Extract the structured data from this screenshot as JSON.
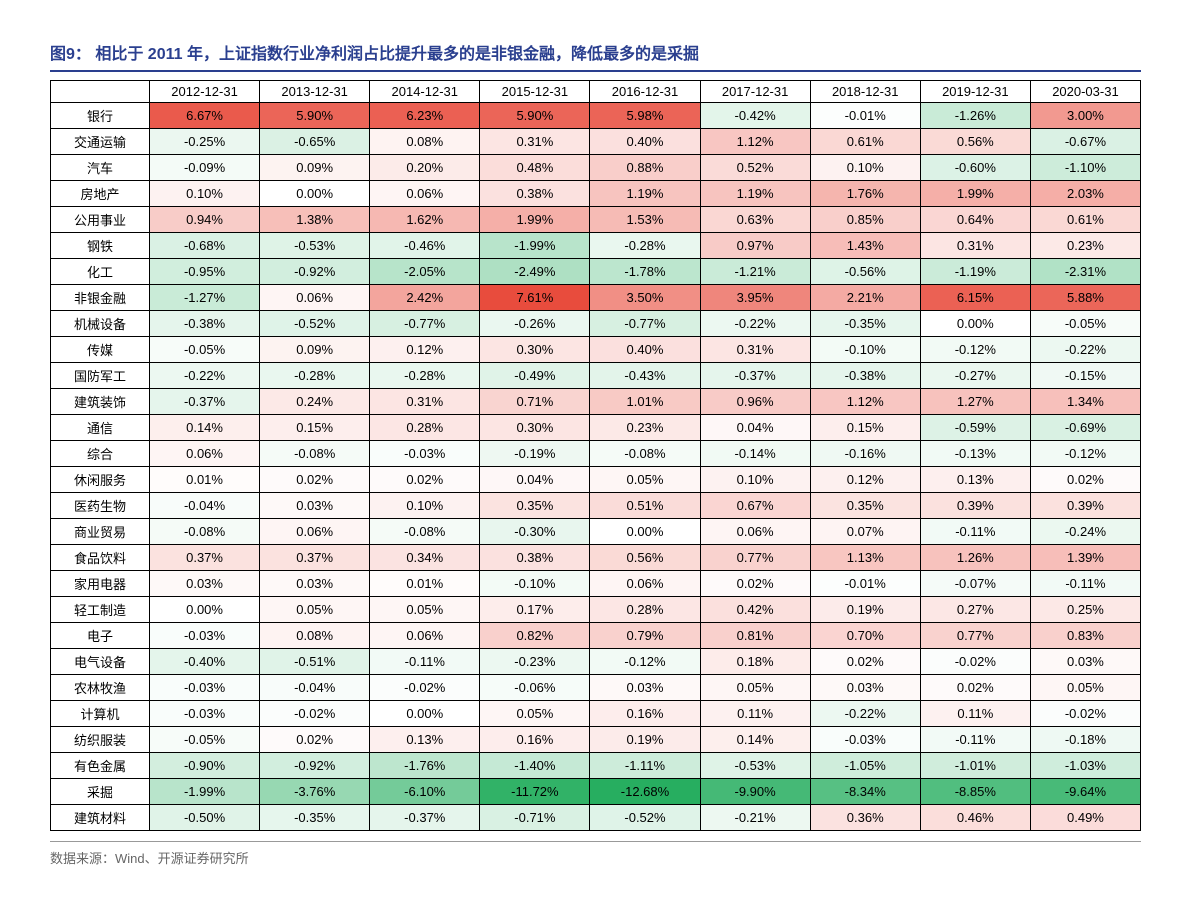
{
  "title_label": "图9：",
  "title_text": "相比于 2011 年，上证指数行业净利润占比提升最多的是非银金融，降低最多的是采掘",
  "source": "数据来源：Wind、开源证券研究所",
  "heatmap": {
    "pos_color": "#e84c3d",
    "neg_color": "#27ae60",
    "neutral_color": "#ffffff",
    "pos_max": 7.61,
    "neg_min": -12.68
  },
  "columns": [
    "",
    "2012-12-31",
    "2013-12-31",
    "2014-12-31",
    "2015-12-31",
    "2016-12-31",
    "2017-12-31",
    "2018-12-31",
    "2019-12-31",
    "2020-03-31"
  ],
  "rows": [
    {
      "label": "银行",
      "vals": [
        6.67,
        5.9,
        6.23,
        5.9,
        5.98,
        -0.42,
        -0.01,
        -1.26,
        3.0
      ]
    },
    {
      "label": "交通运输",
      "vals": [
        -0.25,
        -0.65,
        0.08,
        0.31,
        0.4,
        1.12,
        0.61,
        0.56,
        -0.67
      ]
    },
    {
      "label": "汽车",
      "vals": [
        -0.09,
        0.09,
        0.2,
        0.48,
        0.88,
        0.52,
        0.1,
        -0.6,
        -1.1
      ]
    },
    {
      "label": "房地产",
      "vals": [
        0.1,
        0.0,
        0.06,
        0.38,
        1.19,
        1.19,
        1.76,
        1.99,
        2.03
      ]
    },
    {
      "label": "公用事业",
      "vals": [
        0.94,
        1.38,
        1.62,
        1.99,
        1.53,
        0.63,
        0.85,
        0.64,
        0.61
      ]
    },
    {
      "label": "钢铁",
      "vals": [
        -0.68,
        -0.53,
        -0.46,
        -1.99,
        -0.28,
        0.97,
        1.43,
        0.31,
        0.23
      ]
    },
    {
      "label": "化工",
      "vals": [
        -0.95,
        -0.92,
        -2.05,
        -2.49,
        -1.78,
        -1.21,
        -0.56,
        -1.19,
        -2.31
      ]
    },
    {
      "label": "非银金融",
      "vals": [
        -1.27,
        0.06,
        2.42,
        7.61,
        3.5,
        3.95,
        2.21,
        6.15,
        5.88
      ]
    },
    {
      "label": "机械设备",
      "vals": [
        -0.38,
        -0.52,
        -0.77,
        -0.26,
        -0.77,
        -0.22,
        -0.35,
        0.0,
        -0.05
      ]
    },
    {
      "label": "传媒",
      "vals": [
        -0.05,
        0.09,
        0.12,
        0.3,
        0.4,
        0.31,
        -0.1,
        -0.12,
        -0.22
      ]
    },
    {
      "label": "国防军工",
      "vals": [
        -0.22,
        -0.28,
        -0.28,
        -0.49,
        -0.43,
        -0.37,
        -0.38,
        -0.27,
        -0.15
      ]
    },
    {
      "label": "建筑装饰",
      "vals": [
        -0.37,
        0.24,
        0.31,
        0.71,
        1.01,
        0.96,
        1.12,
        1.27,
        1.34
      ]
    },
    {
      "label": "通信",
      "vals": [
        0.14,
        0.15,
        0.28,
        0.3,
        0.23,
        0.04,
        0.15,
        -0.59,
        -0.69
      ]
    },
    {
      "label": "综合",
      "vals": [
        0.06,
        -0.08,
        -0.03,
        -0.19,
        -0.08,
        -0.14,
        -0.16,
        -0.13,
        -0.12
      ]
    },
    {
      "label": "休闲服务",
      "vals": [
        0.01,
        0.02,
        0.02,
        0.04,
        0.05,
        0.1,
        0.12,
        0.13,
        0.02
      ]
    },
    {
      "label": "医药生物",
      "vals": [
        -0.04,
        0.03,
        0.1,
        0.35,
        0.51,
        0.67,
        0.35,
        0.39,
        0.39
      ]
    },
    {
      "label": "商业贸易",
      "vals": [
        -0.08,
        0.06,
        -0.08,
        -0.3,
        0.0,
        0.06,
        0.07,
        -0.11,
        -0.24
      ]
    },
    {
      "label": "食品饮料",
      "vals": [
        0.37,
        0.37,
        0.34,
        0.38,
        0.56,
        0.77,
        1.13,
        1.26,
        1.39
      ]
    },
    {
      "label": "家用电器",
      "vals": [
        0.03,
        0.03,
        0.01,
        -0.1,
        0.06,
        0.02,
        -0.01,
        -0.07,
        -0.11
      ]
    },
    {
      "label": "轻工制造",
      "vals": [
        0.0,
        0.05,
        0.05,
        0.17,
        0.28,
        0.42,
        0.19,
        0.27,
        0.25
      ]
    },
    {
      "label": "电子",
      "vals": [
        -0.03,
        0.08,
        0.06,
        0.82,
        0.79,
        0.81,
        0.7,
        0.77,
        0.83
      ]
    },
    {
      "label": "电气设备",
      "vals": [
        -0.4,
        -0.51,
        -0.11,
        -0.23,
        -0.12,
        0.18,
        0.02,
        -0.02,
        0.03
      ]
    },
    {
      "label": "农林牧渔",
      "vals": [
        -0.03,
        -0.04,
        -0.02,
        -0.06,
        0.03,
        0.05,
        0.03,
        0.02,
        0.05
      ]
    },
    {
      "label": "计算机",
      "vals": [
        -0.03,
        -0.02,
        0.0,
        0.05,
        0.16,
        0.11,
        -0.22,
        0.11,
        -0.02
      ]
    },
    {
      "label": "纺织服装",
      "vals": [
        -0.05,
        0.02,
        0.13,
        0.16,
        0.19,
        0.14,
        -0.03,
        -0.11,
        -0.18
      ]
    },
    {
      "label": "有色金属",
      "vals": [
        -0.9,
        -0.92,
        -1.76,
        -1.4,
        -1.11,
        -0.53,
        -1.05,
        -1.01,
        -1.03
      ]
    },
    {
      "label": "采掘",
      "vals": [
        -1.99,
        -3.76,
        -6.1,
        -11.72,
        -12.68,
        -9.9,
        -8.34,
        -8.85,
        -9.64
      ]
    },
    {
      "label": "建筑材料",
      "vals": [
        -0.5,
        -0.35,
        -0.37,
        -0.71,
        -0.52,
        -0.21,
        0.36,
        0.46,
        0.49
      ]
    }
  ]
}
